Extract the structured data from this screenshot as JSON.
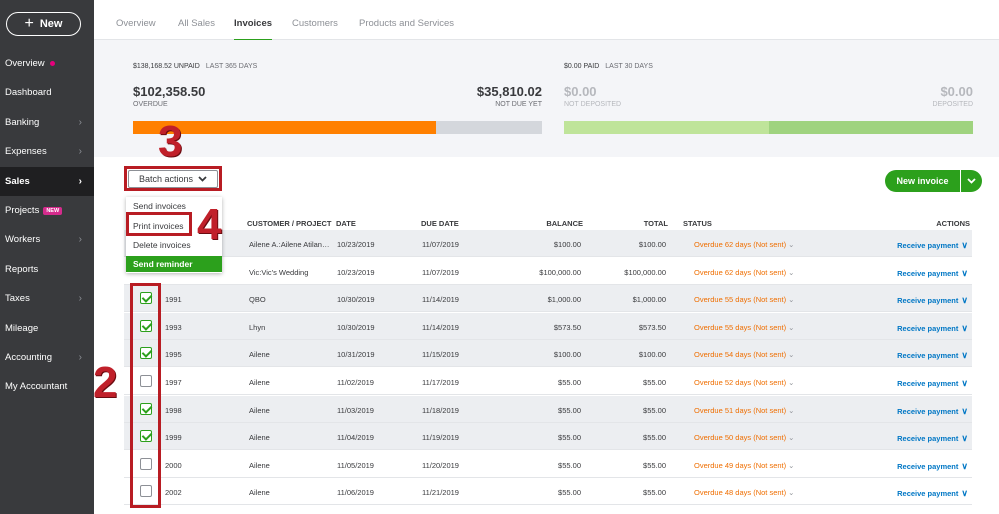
{
  "sidebar": {
    "new_label": "New",
    "items": [
      {
        "label": "Overview",
        "dot": true
      },
      {
        "label": "Dashboard"
      },
      {
        "label": "Banking",
        "chevron": true
      },
      {
        "label": "Expenses",
        "chevron": true
      },
      {
        "label": "Sales",
        "chevron": true,
        "active": true
      },
      {
        "label": "Projects",
        "badge": "NEW"
      },
      {
        "label": "Workers",
        "chevron": true
      },
      {
        "label": "Reports"
      },
      {
        "label": "Taxes",
        "chevron": true
      },
      {
        "label": "Mileage"
      },
      {
        "label": "Accounting",
        "chevron": true
      },
      {
        "label": "My Accountant"
      }
    ]
  },
  "tabs": [
    "Overview",
    "All Sales",
    "Invoices",
    "Customers",
    "Products and Services"
  ],
  "active_tab": "Invoices",
  "summary": {
    "unpaid_amount": "$138,168.52 UNPAID",
    "unpaid_period": "LAST 365 DAYS",
    "overdue_amount": "$102,358.50",
    "overdue_label": "OVERDUE",
    "not_due_amount": "$35,810.02",
    "not_due_label": "NOT DUE YET",
    "paid_amount": "$0.00 PAID",
    "paid_period": "LAST 30 DAYS",
    "not_deposited_amount": "$0.00",
    "not_deposited_label": "NOT DEPOSITED",
    "deposited_amount": "$0.00",
    "deposited_label": "DEPOSITED",
    "colors": {
      "overdue": "#ff8000",
      "not_due": "#d4d7dc",
      "not_deposited": "#bfe49a",
      "deposited": "#9fd37f"
    }
  },
  "batch_actions": {
    "label": "Batch actions",
    "items": [
      "Send invoices",
      "Print invoices",
      "Delete invoices",
      "Send reminder"
    ]
  },
  "new_invoice_label": "New invoice",
  "table": {
    "headers": {
      "customer": "CUSTOMER / PROJECT",
      "date": "DATE",
      "due": "DUE DATE",
      "balance": "BALANCE",
      "total": "TOTAL",
      "status": "STATUS",
      "actions": "ACTIONS"
    },
    "rows": [
      {
        "no": "",
        "customer": "Ailene A.:Ailene Atilan…",
        "date": "10/23/2019",
        "due": "11/07/2019",
        "balance": "$100.00",
        "total": "$100.00",
        "status": "Overdue 62 days (Not sent)",
        "action": "Receive payment",
        "checked": false,
        "shaded": true
      },
      {
        "no": "",
        "customer": "Vic:Vic's Wedding",
        "date": "10/23/2019",
        "due": "11/07/2019",
        "balance": "$100,000.00",
        "total": "$100,000.00",
        "status": "Overdue 62 days (Not sent)",
        "action": "Receive payment",
        "checked": false,
        "shaded": false
      },
      {
        "no": "1991",
        "customer": "QBO",
        "date": "10/30/2019",
        "due": "11/14/2019",
        "balance": "$1,000.00",
        "total": "$1,000.00",
        "status": "Overdue 55 days (Not sent)",
        "action": "Receive payment",
        "checked": true,
        "shaded": true
      },
      {
        "no": "1993",
        "customer": "Lhyn",
        "date": "10/30/2019",
        "due": "11/14/2019",
        "balance": "$573.50",
        "total": "$573.50",
        "status": "Overdue 55 days (Not sent)",
        "action": "Receive payment",
        "checked": true,
        "shaded": true
      },
      {
        "no": "1995",
        "customer": "Ailene",
        "date": "10/31/2019",
        "due": "11/15/2019",
        "balance": "$100.00",
        "total": "$100.00",
        "status": "Overdue 54 days (Not sent)",
        "action": "Receive payment",
        "checked": true,
        "shaded": true
      },
      {
        "no": "1997",
        "customer": "Ailene",
        "date": "11/02/2019",
        "due": "11/17/2019",
        "balance": "$55.00",
        "total": "$55.00",
        "status": "Overdue 52 days (Not sent)",
        "action": "Receive payment",
        "checked": false,
        "shaded": false
      },
      {
        "no": "1998",
        "customer": "Ailene",
        "date": "11/03/2019",
        "due": "11/18/2019",
        "balance": "$55.00",
        "total": "$55.00",
        "status": "Overdue 51 days (Not sent)",
        "action": "Receive payment",
        "checked": true,
        "shaded": true
      },
      {
        "no": "1999",
        "customer": "Ailene",
        "date": "11/04/2019",
        "due": "11/19/2019",
        "balance": "$55.00",
        "total": "$55.00",
        "status": "Overdue 50 days (Not sent)",
        "action": "Receive payment",
        "checked": true,
        "shaded": true
      },
      {
        "no": "2000",
        "customer": "Ailene",
        "date": "11/05/2019",
        "due": "11/20/2019",
        "balance": "$55.00",
        "total": "$55.00",
        "status": "Overdue 49 days (Not sent)",
        "action": "Receive payment",
        "checked": false,
        "shaded": false
      },
      {
        "no": "2002",
        "customer": "Ailene",
        "date": "11/06/2019",
        "due": "11/21/2019",
        "balance": "$55.00",
        "total": "$55.00",
        "status": "Overdue 48 days (Not sent)",
        "action": "Receive payment",
        "checked": false,
        "shaded": false
      }
    ]
  },
  "annotations": {
    "step_2": "2",
    "step_3": "3",
    "step_4": "4"
  }
}
